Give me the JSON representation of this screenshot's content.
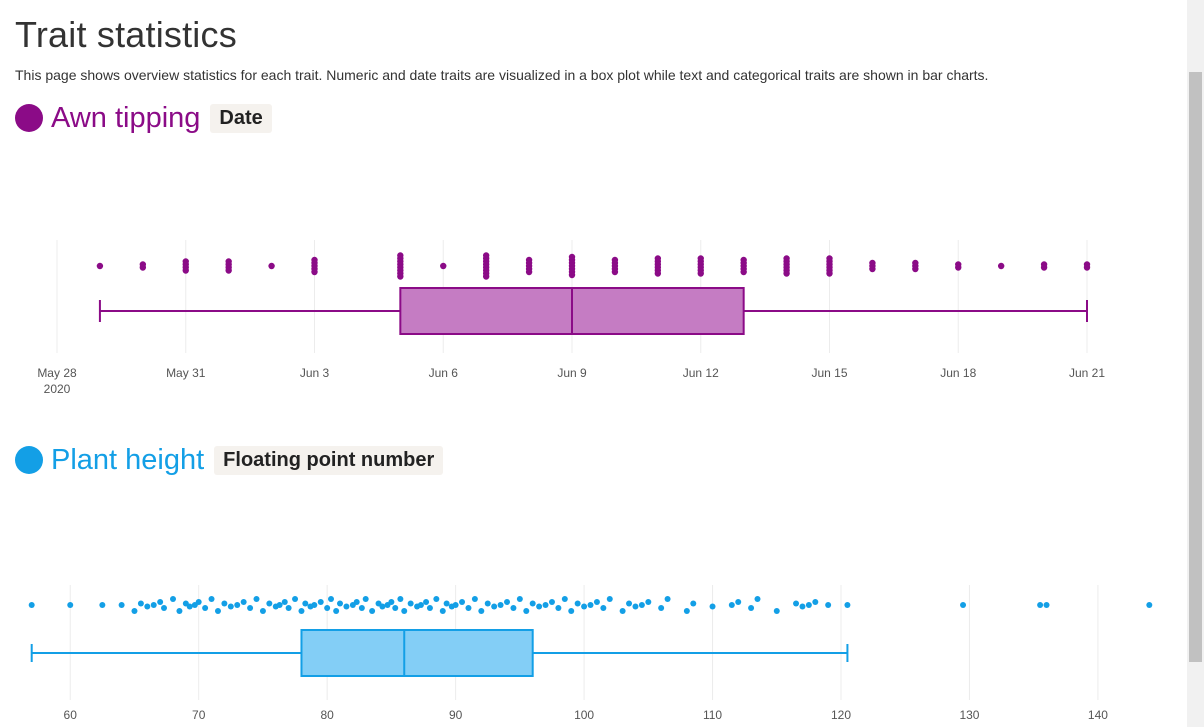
{
  "page": {
    "title": "Trait statistics",
    "intro": "This page shows overview statistics for each trait. Numeric and date traits are visualized in a box plot while text and categorical traits are shown in bar charts."
  },
  "traits": [
    {
      "name": "Awn tipping",
      "type_label": "Date",
      "color": "#8b0b87"
    },
    {
      "name": "Plant height",
      "type_label": "Floating point number",
      "color": "#139fe6"
    }
  ],
  "chart_data": [
    {
      "type": "box",
      "orientation": "horizontal",
      "x_axis": "date",
      "xlim": [
        "2020-05-28",
        "2020-06-21"
      ],
      "tick_labels": [
        "May 28",
        "May 31",
        "Jun 3",
        "Jun 6",
        "Jun 9",
        "Jun 12",
        "Jun 15",
        "Jun 18",
        "Jun 21"
      ],
      "year_label": "2020",
      "box": {
        "min": "2020-05-29",
        "q1": "2020-06-05",
        "median": "2020-06-09",
        "q3": "2020-06-13",
        "max": "2020-06-21"
      },
      "points": [
        [
          "2020-05-29",
          1
        ],
        [
          "2020-05-30",
          2
        ],
        [
          "2020-05-31",
          4
        ],
        [
          "2020-06-01",
          4
        ],
        [
          "2020-06-02",
          1
        ],
        [
          "2020-06-03",
          5
        ],
        [
          "2020-06-05",
          8
        ],
        [
          "2020-06-06",
          1
        ],
        [
          "2020-06-07",
          8
        ],
        [
          "2020-06-08",
          5
        ],
        [
          "2020-06-09",
          7
        ],
        [
          "2020-06-10",
          5
        ],
        [
          "2020-06-11",
          6
        ],
        [
          "2020-06-12",
          6
        ],
        [
          "2020-06-13",
          5
        ],
        [
          "2020-06-14",
          6
        ],
        [
          "2020-06-15",
          6
        ],
        [
          "2020-06-16",
          3
        ],
        [
          "2020-06-17",
          3
        ],
        [
          "2020-06-18",
          2
        ],
        [
          "2020-06-19",
          1
        ],
        [
          "2020-06-20",
          2
        ],
        [
          "2020-06-21",
          2
        ]
      ],
      "color": "#8b0b87",
      "fill": "#c57cc3"
    },
    {
      "type": "box",
      "orientation": "horizontal",
      "x_axis": "linear",
      "xlim": [
        55.7,
        146
      ],
      "tick_values": [
        60,
        70,
        80,
        90,
        100,
        110,
        120,
        130,
        140
      ],
      "box": {
        "min": 57,
        "q1": 78,
        "median": 86,
        "q3": 96,
        "max": 120.5
      },
      "points": [
        57,
        60,
        62.5,
        64,
        65,
        65.5,
        66,
        66.5,
        67,
        67.3,
        68,
        68.5,
        69,
        69.3,
        69.7,
        70,
        70.5,
        71,
        71.5,
        72,
        72.5,
        73,
        73.5,
        74,
        74.5,
        75,
        75.5,
        76,
        76.3,
        76.7,
        77,
        77.5,
        78,
        78.3,
        78.7,
        79,
        79.5,
        80,
        80.3,
        80.7,
        81,
        81.5,
        82,
        82.3,
        82.7,
        83,
        83.5,
        84,
        84.3,
        84.7,
        85,
        85.3,
        85.7,
        86,
        86.5,
        87,
        87.3,
        87.7,
        88,
        88.5,
        89,
        89.3,
        89.7,
        90,
        90.5,
        91,
        91.5,
        92,
        92.5,
        93,
        93.5,
        94,
        94.5,
        95,
        95.5,
        96,
        96.5,
        97,
        97.5,
        98,
        98.5,
        99,
        99.5,
        100,
        100.5,
        101,
        101.5,
        102,
        103,
        103.5,
        104,
        104.5,
        105,
        106,
        106.5,
        108,
        108.5,
        110,
        111.5,
        112,
        113,
        113.5,
        115,
        116.5,
        117,
        117.5,
        118,
        119,
        120.5,
        129.5,
        135.5,
        136,
        144
      ],
      "color": "#139fe6",
      "fill": "#83cef6"
    }
  ]
}
